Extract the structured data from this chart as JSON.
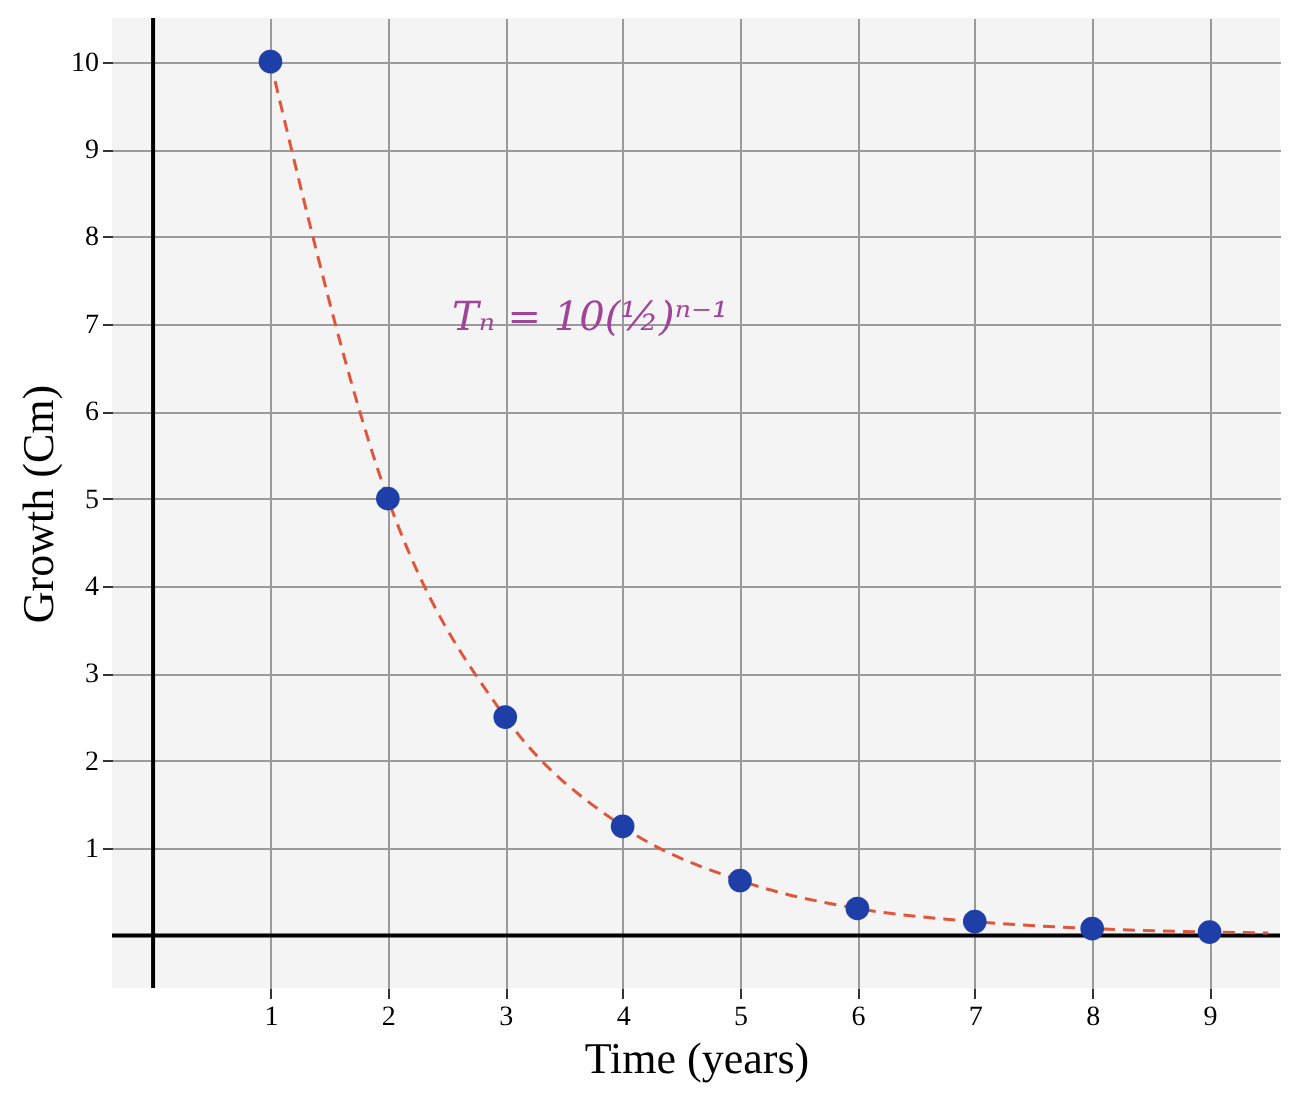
{
  "chart_data": {
    "type": "scatter",
    "xlabel": "Time (years)",
    "ylabel": "Growth (Cm)",
    "xlim": [
      -0.35,
      9.6
    ],
    "ylim": [
      -0.6,
      10.5
    ],
    "xticks": [
      1,
      2,
      3,
      4,
      5,
      6,
      7,
      8,
      9
    ],
    "yticks": [
      1,
      2,
      3,
      4,
      5,
      6,
      7,
      8,
      9,
      10
    ],
    "grid": true,
    "marker": "circle",
    "x": [
      1,
      2,
      3,
      4,
      5,
      6,
      7,
      8,
      9
    ],
    "series": [
      {
        "color": "#1f3fa8",
        "values": [
          10,
          5,
          2.5,
          1.25,
          0.63,
          0.31,
          0.16,
          0.08,
          0.04
        ]
      },
      {
        "type": "line",
        "color": "#e0553a",
        "line_style": "dashed",
        "marker": "none",
        "x": [
          1,
          2,
          3,
          4,
          5,
          6,
          7,
          8,
          9,
          9.5
        ],
        "values": [
          10,
          5,
          2.5,
          1.25,
          0.63,
          0.31,
          0.16,
          0.08,
          0.04,
          0.03
        ]
      }
    ],
    "annotations": [
      "Tₙ = 10(½)ⁿ⁻¹"
    ]
  }
}
